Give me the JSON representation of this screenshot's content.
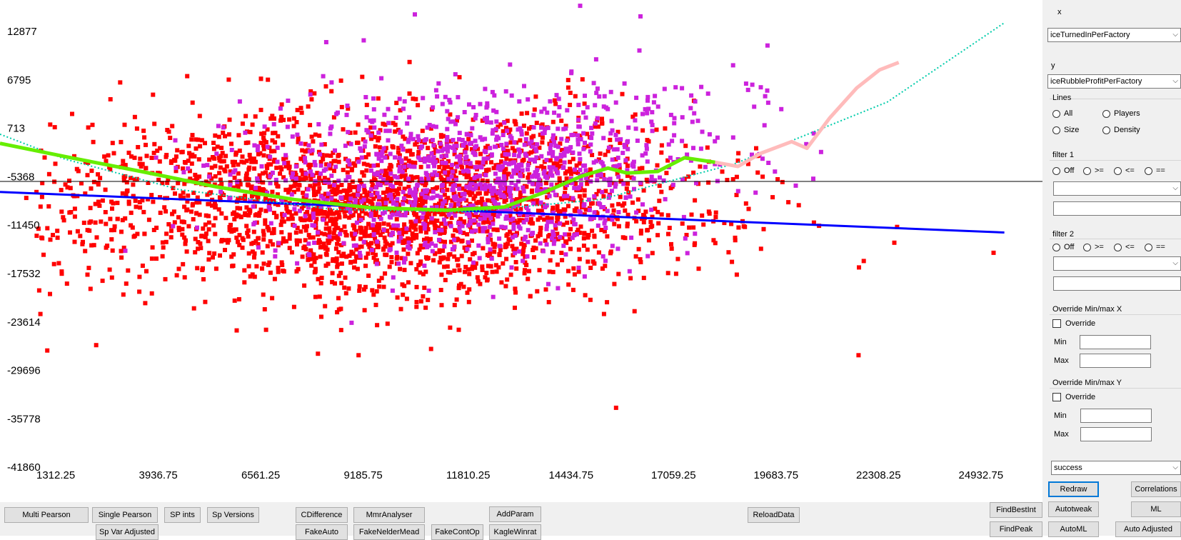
{
  "chart_data": {
    "type": "scatter",
    "x_ticks": [
      "1312.25",
      "3936.75",
      "6561.25",
      "9185.75",
      "11810.25",
      "14434.75",
      "17059.25",
      "19683.75",
      "22308.25",
      "24932.75"
    ],
    "y_ticks": [
      "12877",
      "6795",
      "713",
      "-5368",
      "-11450",
      "-17532",
      "-23614",
      "-29696",
      "-35778",
      "-41860"
    ],
    "xlim": [
      312.25,
      27556
    ],
    "ylim": [
      -41860,
      18959
    ],
    "zero_line_y": -5368,
    "grid": false,
    "series": [
      {
        "color": "#ff0000",
        "n_points": 2600
      },
      {
        "color": "#cc22dd",
        "n_points": 1150
      }
    ],
    "lines": [
      {
        "kind": "linear-fit",
        "color": "#0000ff",
        "points": [
          [
            312,
            -4300
          ],
          [
            26560,
            -9200
          ]
        ]
      },
      {
        "kind": "polynomial-fit",
        "color": "#00ccaa",
        "style": "dotted",
        "points": [
          [
            312,
            2700
          ],
          [
            2000,
            -300
          ],
          [
            5000,
            -4000
          ],
          [
            9000,
            -6400
          ],
          [
            12500,
            -6700
          ],
          [
            16000,
            -5200
          ],
          [
            19500,
            -900
          ],
          [
            23500,
            6600
          ],
          [
            26560,
            16200
          ]
        ]
      },
      {
        "kind": "moving-average",
        "color": "#66ee00",
        "points": [
          [
            312,
            1600
          ],
          [
            2000,
            0
          ],
          [
            4000,
            -1800
          ],
          [
            6000,
            -3700
          ],
          [
            8000,
            -5200
          ],
          [
            10000,
            -6200
          ],
          [
            12000,
            -6500
          ],
          [
            13500,
            -6100
          ],
          [
            14500,
            -4400
          ],
          [
            15500,
            -2400
          ],
          [
            16200,
            -1400
          ],
          [
            16700,
            -2000
          ],
          [
            17500,
            -1800
          ],
          [
            18200,
            -150
          ],
          [
            19000,
            -700
          ]
        ]
      },
      {
        "kind": "moving-average-tail",
        "color": "#ffbbbb",
        "points": [
          [
            19000,
            -700
          ],
          [
            19600,
            -1200
          ],
          [
            20200,
            400
          ],
          [
            21000,
            1800
          ],
          [
            21400,
            1000
          ],
          [
            22000,
            4700
          ],
          [
            22700,
            8300
          ],
          [
            23300,
            10500
          ],
          [
            23800,
            11400
          ]
        ]
      }
    ]
  },
  "side_panel": {
    "x_label": "x",
    "x_value": "iceTurnedInPerFactory",
    "y_label": "y",
    "y_value": "iceRubbleProfitPerFactory",
    "lines_title": "Lines",
    "lines_options": [
      "All",
      "Players",
      "Size",
      "Density"
    ],
    "filter1_title": "filter 1",
    "filter2_title": "filter 2",
    "filter_ops": [
      "Off",
      ">=",
      "<=",
      "=="
    ],
    "override_x_title": "Override Min/max X",
    "override_y_title": "Override Min/max Y",
    "override_label": "Override",
    "min_label": "Min",
    "max_label": "Max",
    "target_value": "success",
    "buttons": {
      "redraw": "Redraw",
      "correlations": "Correlations",
      "autotweak": "Autotweak",
      "ml": "ML",
      "automl": "AutoML",
      "auto_adjusted": "Auto Adjusted"
    }
  },
  "bottom_bar": {
    "multi_pearson": "Multi Pearson",
    "single_pearson": "Single Pearson",
    "sp_ints": "SP ints",
    "sp_versions": "Sp Versions",
    "cdifference": "CDifference",
    "mmr_analyser": "MmrAnalyser",
    "add_param": "AddParam",
    "reload_data": "ReloadData",
    "find_best_int": "FindBestInt",
    "find_peak": "FindPeak",
    "sp_var_adjusted": "Sp Var Adjusted",
    "fake_auto": "FakeAuto",
    "fake_nelder_mead": "FakeNelderMead",
    "fake_cont_op": "FakeContOp",
    "kagle_winrat": "KagleWinrat"
  }
}
